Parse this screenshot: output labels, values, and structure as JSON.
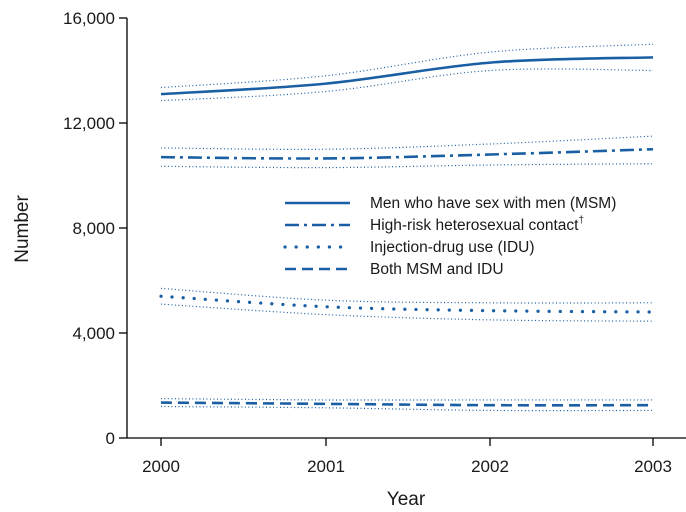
{
  "chart_data": {
    "type": "line",
    "title": "",
    "xlabel": "Year",
    "ylabel": "Number",
    "categories": [
      "2000",
      "2001",
      "2002",
      "2003"
    ],
    "ylim": [
      0,
      16000
    ],
    "yticks": [
      0,
      4000,
      8000,
      12000,
      16000
    ],
    "ytick_labels": [
      "0",
      "4,000",
      "8,000",
      "12,000",
      "16,000"
    ],
    "grid": false,
    "legend_position": "center-right",
    "line_color": "#1a5fa3",
    "series": [
      {
        "name": "Men who have sex with men (MSM)",
        "style": "solid",
        "values": [
          13100,
          13500,
          14300,
          14500
        ],
        "lower": [
          12850,
          13200,
          14000,
          14000
        ],
        "upper": [
          13350,
          13800,
          14700,
          15000
        ]
      },
      {
        "name": "High-risk heterosexual contact",
        "name_suffix": "†",
        "style": "dashdot",
        "values": [
          10700,
          10650,
          10800,
          11000
        ],
        "lower": [
          10350,
          10300,
          10400,
          10450
        ],
        "upper": [
          11050,
          11000,
          11200,
          11500
        ]
      },
      {
        "name": "Injection-drug use (IDU)",
        "style": "dotted",
        "values": [
          5400,
          5000,
          4850,
          4800
        ],
        "lower": [
          5100,
          4700,
          4500,
          4450
        ],
        "upper": [
          5700,
          5250,
          5150,
          5150
        ]
      },
      {
        "name": "Both MSM and IDU",
        "style": "dashed",
        "values": [
          1350,
          1300,
          1250,
          1250
        ],
        "lower": [
          1200,
          1150,
          1050,
          1050
        ],
        "upper": [
          1500,
          1450,
          1450,
          1450
        ]
      }
    ]
  }
}
